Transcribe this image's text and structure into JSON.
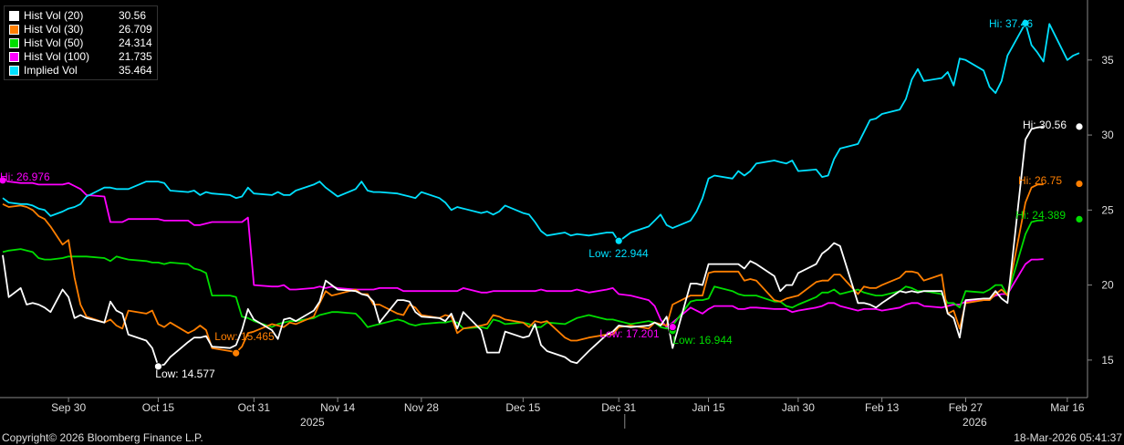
{
  "chart_data": {
    "type": "line",
    "ylim": [
      12.5,
      39
    ],
    "yticks": [
      15,
      20,
      25,
      30,
      35
    ],
    "grid": false,
    "legend_position": "top-left",
    "x_dates": [
      "2025-09-19",
      "2025-09-20",
      "2025-09-22",
      "2025-09-23",
      "2025-09-24",
      "2025-09-25",
      "2025-09-26",
      "2025-09-27",
      "2025-09-29",
      "2025-09-30",
      "2025-10-01",
      "2025-10-02",
      "2025-10-03",
      "2025-10-06",
      "2025-10-07",
      "2025-10-08",
      "2025-10-09",
      "2025-10-10",
      "2025-10-13",
      "2025-10-14",
      "2025-10-15",
      "2025-10-16",
      "2025-10-17",
      "2025-10-20",
      "2025-10-21",
      "2025-10-22",
      "2025-10-23",
      "2025-10-24",
      "2025-10-27",
      "2025-10-28",
      "2025-10-29",
      "2025-10-30",
      "2025-10-31",
      "2025-11-03",
      "2025-11-04",
      "2025-11-05",
      "2025-11-06",
      "2025-11-07",
      "2025-11-10",
      "2025-11-11",
      "2025-11-12",
      "2025-11-13",
      "2025-11-14",
      "2025-11-17",
      "2025-11-18",
      "2025-11-19",
      "2025-11-20",
      "2025-11-21",
      "2025-11-24",
      "2025-11-25",
      "2025-11-26",
      "2025-11-27",
      "2025-11-28",
      "2025-12-01",
      "2025-12-02",
      "2025-12-03",
      "2025-12-04",
      "2025-12-05",
      "2025-12-08",
      "2025-12-09",
      "2025-12-10",
      "2025-12-11",
      "2025-12-12",
      "2025-12-15",
      "2025-12-16",
      "2025-12-17",
      "2025-12-18",
      "2025-12-19",
      "2025-12-22",
      "2025-12-23",
      "2025-12-24",
      "2025-12-26",
      "2025-12-29",
      "2025-12-30",
      "2025-12-31",
      "2026-01-02",
      "2026-01-05",
      "2026-01-06",
      "2026-01-07",
      "2026-01-08",
      "2026-01-09",
      "2026-01-12",
      "2026-01-13",
      "2026-01-14",
      "2026-01-15",
      "2026-01-16",
      "2026-01-19",
      "2026-01-20",
      "2026-01-21",
      "2026-01-22",
      "2026-01-23",
      "2026-01-26",
      "2026-01-27",
      "2026-01-28",
      "2026-01-29",
      "2026-01-30",
      "2026-02-02",
      "2026-02-03",
      "2026-02-04",
      "2026-02-05",
      "2026-02-06",
      "2026-02-09",
      "2026-02-10",
      "2026-02-11",
      "2026-02-12",
      "2026-02-13",
      "2026-02-16",
      "2026-02-17",
      "2026-02-18",
      "2026-02-19",
      "2026-02-20",
      "2026-02-23",
      "2026-02-24",
      "2026-02-25",
      "2026-02-26",
      "2026-02-27",
      "2026-03-02",
      "2026-03-03",
      "2026-03-04",
      "2026-03-05",
      "2026-03-06",
      "2026-03-09",
      "2026-03-10",
      "2026-03-11",
      "2026-03-12",
      "2026-03-13",
      "2026-03-16",
      "2026-03-17",
      "2026-03-18"
    ],
    "series": [
      {
        "name": "Hist Vol (20)",
        "color": "#ffffff",
        "last": "30.56",
        "values": [
          22.0,
          19.2,
          19.8,
          18.7,
          18.8,
          18.7,
          18.5,
          18.2,
          19.7,
          19.2,
          17.8,
          18.0,
          17.8,
          17.5,
          18.9,
          18.3,
          18.1,
          16.7,
          16.3,
          15.8,
          14.6,
          14.7,
          15.2,
          16.2,
          16.5,
          16.5,
          16.6,
          15.9,
          15.8,
          16.0,
          17.0,
          18.4,
          17.7,
          17.0,
          16.4,
          17.7,
          17.8,
          17.6,
          18.3,
          18.9,
          20.3,
          20.0,
          19.7,
          19.6,
          19.4,
          19.3,
          18.9,
          17.5,
          19.0,
          19.0,
          18.9,
          18.2,
          17.9,
          17.8,
          17.6,
          18.1,
          17.1,
          18.2,
          17.0,
          15.5,
          15.5,
          15.5,
          16.9,
          16.5,
          16.6,
          17.4,
          16.0,
          15.6,
          15.2,
          14.9,
          14.8,
          15.6,
          16.7,
          16.9,
          17.3,
          17.2,
          17.3,
          17.5,
          17.3,
          17.9,
          15.8,
          20.1,
          20.1,
          20.0,
          21.4,
          21.4,
          21.4,
          21.4,
          21.1,
          21.6,
          21.4,
          20.6,
          19.6,
          20.0,
          20.0,
          20.8,
          21.4,
          22.1,
          22.4,
          22.8,
          22.6,
          18.8,
          18.8,
          18.7,
          18.5,
          18.8,
          19.6,
          19.5,
          19.6,
          19.5,
          19.6,
          19.6,
          18.1,
          17.8,
          16.5,
          19.0,
          19.1,
          19.1,
          19.6,
          19.1,
          18.8,
          29.7,
          30.4,
          30.5,
          30.56
        ]
      },
      {
        "name": "Hist Vol (30)",
        "color": "#ff7f00",
        "last": "26.709",
        "values": [
          25.4,
          25.2,
          25.3,
          25.2,
          25.0,
          24.6,
          24.4,
          23.9,
          22.7,
          23.0,
          20.5,
          18.7,
          17.9,
          17.5,
          17.7,
          17.3,
          17.1,
          18.3,
          18.1,
          18.3,
          17.4,
          17.2,
          17.5,
          16.8,
          17.0,
          17.3,
          17.0,
          15.8,
          15.6,
          15.5,
          15.9,
          16.8,
          16.9,
          17.4,
          17.3,
          17.2,
          17.5,
          17.4,
          17.9,
          18.8,
          19.6,
          19.3,
          19.4,
          19.7,
          19.4,
          19.4,
          18.7,
          18.7,
          18.1,
          18.0,
          18.7,
          18.5,
          18.0,
          17.8,
          18.0,
          17.9,
          16.8,
          17.1,
          17.3,
          17.4,
          18.0,
          17.9,
          17.7,
          17.5,
          17.2,
          17.6,
          17.5,
          17.6,
          16.5,
          16.3,
          16.3,
          16.5,
          16.7,
          16.7,
          17.2,
          17.3,
          17.1,
          17.5,
          17.4,
          17.3,
          18.7,
          19.3,
          19.3,
          19.3,
          20.8,
          20.9,
          20.9,
          20.9,
          20.3,
          20.4,
          20.3,
          19.0,
          18.9,
          19.1,
          19.2,
          19.3,
          20.2,
          20.3,
          20.3,
          20.7,
          20.7,
          19.4,
          19.9,
          19.8,
          19.8,
          20.0,
          20.5,
          20.9,
          20.9,
          20.8,
          20.3,
          20.7,
          18.1,
          18.3,
          17.1,
          18.8,
          19.0,
          19.0,
          19.4,
          19.7,
          19.3,
          25.5,
          26.5,
          26.7,
          26.709
        ]
      },
      {
        "name": "Hist Vol (50)",
        "color": "#00dd00",
        "last": "24.314",
        "values": [
          22.2,
          22.3,
          22.4,
          22.3,
          22.2,
          21.8,
          21.7,
          21.7,
          21.8,
          21.9,
          21.9,
          21.9,
          21.9,
          21.8,
          21.6,
          21.9,
          21.8,
          21.7,
          21.6,
          21.5,
          21.5,
          21.4,
          21.5,
          21.4,
          21.1,
          21.0,
          20.8,
          19.3,
          19.3,
          19.2,
          17.9,
          17.8,
          17.6,
          17.2,
          17.4,
          17.5,
          17.6,
          17.6,
          17.8,
          18.0,
          18.1,
          18.2,
          18.2,
          18.1,
          17.7,
          17.2,
          17.3,
          17.4,
          17.7,
          17.6,
          17.4,
          17.3,
          17.4,
          17.5,
          17.5,
          17.6,
          17.5,
          17.1,
          17.2,
          17.1,
          17.7,
          17.6,
          17.4,
          17.5,
          17.4,
          17.2,
          17.2,
          17.5,
          17.4,
          17.6,
          17.8,
          18.0,
          17.7,
          17.7,
          17.6,
          17.4,
          17.6,
          17.5,
          17.2,
          17.1,
          17.3,
          18.9,
          19.0,
          19.0,
          19.1,
          19.9,
          19.6,
          19.4,
          19.3,
          19.3,
          19.3,
          18.9,
          18.9,
          18.6,
          18.5,
          18.7,
          19.2,
          19.5,
          19.5,
          19.7,
          19.4,
          19.7,
          19.5,
          19.4,
          19.3,
          19.3,
          19.6,
          19.9,
          19.8,
          19.6,
          19.6,
          19.4,
          18.8,
          18.8,
          18.5,
          19.6,
          19.5,
          19.7,
          20.0,
          20.0,
          19.3,
          23.4,
          24.2,
          24.3,
          24.314
        ]
      },
      {
        "name": "Hist Vol (100)",
        "color": "#ff00ff",
        "last": "21.735",
        "values": [
          26.98,
          26.9,
          26.8,
          26.8,
          26.8,
          26.7,
          26.7,
          26.7,
          26.7,
          26.8,
          26.6,
          26.4,
          26.0,
          25.9,
          24.2,
          24.2,
          24.2,
          24.4,
          24.4,
          24.4,
          24.4,
          24.3,
          24.3,
          24.3,
          24.0,
          24.0,
          24.1,
          24.2,
          24.2,
          24.2,
          24.2,
          24.5,
          20.0,
          19.9,
          19.9,
          20.0,
          19.7,
          19.7,
          19.8,
          19.9,
          19.8,
          19.9,
          19.8,
          19.7,
          19.7,
          19.7,
          19.7,
          19.8,
          19.8,
          19.6,
          19.6,
          19.6,
          19.6,
          19.6,
          19.6,
          19.6,
          19.6,
          19.8,
          19.5,
          19.5,
          19.6,
          19.6,
          19.6,
          19.6,
          19.6,
          19.6,
          19.7,
          19.6,
          19.6,
          19.6,
          19.7,
          19.5,
          19.7,
          19.8,
          19.4,
          19.3,
          19.0,
          18.6,
          17.7,
          17.2,
          17.5,
          18.5,
          18.3,
          18.1,
          18.4,
          18.6,
          18.6,
          18.4,
          18.4,
          18.5,
          18.5,
          18.4,
          18.4,
          18.4,
          18.2,
          18.3,
          18.5,
          18.6,
          18.8,
          18.8,
          18.6,
          18.3,
          18.4,
          18.4,
          18.4,
          18.3,
          18.5,
          18.7,
          18.8,
          18.8,
          18.6,
          18.5,
          18.6,
          18.7,
          18.7,
          18.9,
          19.0,
          19.1,
          19.3,
          19.4,
          19.4,
          21.4,
          21.7,
          21.7,
          21.735
        ]
      },
      {
        "name": "Implied Vol",
        "color": "#00e0ff",
        "last": "35.464",
        "values": [
          25.8,
          25.5,
          25.4,
          25.4,
          25.3,
          25.1,
          25.0,
          24.6,
          24.9,
          25.1,
          25.2,
          25.4,
          25.9,
          26.5,
          26.5,
          26.4,
          26.4,
          26.4,
          26.9,
          26.9,
          26.9,
          26.8,
          26.3,
          26.2,
          26.3,
          26.0,
          26.2,
          26.1,
          26.0,
          25.8,
          25.9,
          26.5,
          26.1,
          26.0,
          26.2,
          26.0,
          26.0,
          26.3,
          26.7,
          26.9,
          26.5,
          26.2,
          25.9,
          26.4,
          26.9,
          26.3,
          26.2,
          26.2,
          26.1,
          26.0,
          25.9,
          25.8,
          26.2,
          25.8,
          25.5,
          25.0,
          25.2,
          25.1,
          24.8,
          24.9,
          24.7,
          24.9,
          25.3,
          24.8,
          24.7,
          24.2,
          23.6,
          23.3,
          23.5,
          23.3,
          23.4,
          23.3,
          23.5,
          23.5,
          22.9,
          23.5,
          23.9,
          24.3,
          24.7,
          24.0,
          23.8,
          24.3,
          24.9,
          25.8,
          27.1,
          27.3,
          27.1,
          27.6,
          27.3,
          27.6,
          28.1,
          28.3,
          28.2,
          28.1,
          28.3,
          27.6,
          27.7,
          27.2,
          27.3,
          28.4,
          29.1,
          29.4,
          30.2,
          31.0,
          31.1,
          31.4,
          31.7,
          32.4,
          33.7,
          34.4,
          33.6,
          33.8,
          34.2,
          33.3,
          35.1,
          35.0,
          34.3,
          33.2,
          32.8,
          33.6,
          35.3,
          37.46,
          36.0,
          35.5,
          34.9,
          37.4,
          35.0,
          35.3,
          35.464
        ]
      }
    ],
    "annotations": [
      {
        "series": 0,
        "text": "Low: 14.577",
        "index": 20,
        "value": 14.577
      },
      {
        "series": 0,
        "text": "Hi: 30.56",
        "index": 128,
        "value": 30.56
      },
      {
        "series": 1,
        "text": "Low: 15.465",
        "index": 29,
        "value": 15.465
      },
      {
        "series": 1,
        "text": "Hi: 26.75",
        "index": 128,
        "value": 26.75
      },
      {
        "series": 2,
        "text": "Low: 16.944",
        "index": 80,
        "value": 16.944
      },
      {
        "series": 2,
        "text": "Hi: 24.389",
        "index": 128,
        "value": 24.389
      },
      {
        "series": 3,
        "text": "Hi: 26.976",
        "index": 0,
        "value": 26.976
      },
      {
        "series": 3,
        "text": "Low: 17.201",
        "index": 80,
        "value": 17.201
      },
      {
        "series": 4,
        "text": "Low: 22.944",
        "index": 74,
        "value": 22.944
      },
      {
        "series": 4,
        "text": "Hi: 37.46",
        "index": 121,
        "value": 37.46
      }
    ],
    "x_tick_labels": [
      "Sep 30",
      "Oct 15",
      "Oct 31",
      "Nov 14",
      "Nov 28",
      "Dec 15",
      "Dec 31",
      "Jan 15",
      "Jan 30",
      "Feb 13",
      "Feb 27",
      "Mar 16"
    ],
    "x_tick_dates": [
      "2025-09-30",
      "2025-10-15",
      "2025-10-31",
      "2025-11-14",
      "2025-11-28",
      "2025-12-15",
      "2025-12-31",
      "2026-01-15",
      "2026-01-30",
      "2026-02-13",
      "2026-02-27",
      "2026-03-16"
    ],
    "year_labels": [
      "2025",
      "2026"
    ]
  },
  "legend": [
    {
      "name": "Hist Vol (20)",
      "value": "30.56",
      "color": "#ffffff"
    },
    {
      "name": "Hist Vol (30)",
      "value": "26.709",
      "color": "#ff7f00"
    },
    {
      "name": "Hist Vol (50)",
      "value": "24.314",
      "color": "#00dd00"
    },
    {
      "name": "Hist Vol (100)",
      "value": "21.735",
      "color": "#ff00ff"
    },
    {
      "name": "Implied Vol",
      "value": "35.464",
      "color": "#00e0ff"
    }
  ],
  "footer": {
    "copyright": "Copyright© 2026 Bloomberg Finance L.P.",
    "timestamp": "18-Mar-2026 05:41:37"
  }
}
